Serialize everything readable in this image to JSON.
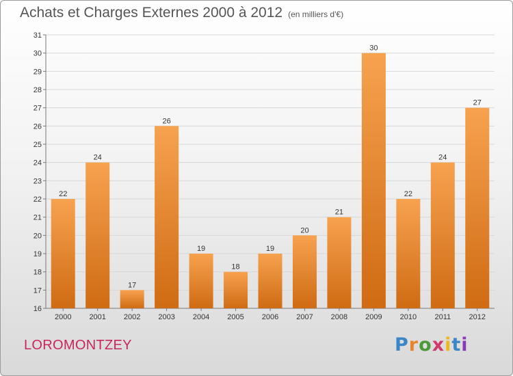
{
  "header": {
    "title": "Achats et Charges Externes 2000 à 2012",
    "subtitle": "(en milliers d'€)"
  },
  "footer": {
    "town": "LOROMONTZEY",
    "logo": "Proxiti"
  },
  "colors": {
    "bar_light": "#f7a24f",
    "bar_dark": "#cf6b13",
    "town": "#c8265a",
    "logo_letters": [
      "#3a86c8",
      "#e8842a",
      "#4a9a3a",
      "#d03a6a",
      "#f0b81a",
      "#3a86c8",
      "#8a3ab8"
    ]
  },
  "chart_data": {
    "type": "bar",
    "title": "Achats et Charges Externes 2000 à 2012",
    "subtitle": "(en milliers d'€)",
    "xlabel": "",
    "ylabel": "",
    "categories": [
      "2000",
      "2001",
      "2002",
      "2003",
      "2004",
      "2005",
      "2006",
      "2007",
      "2008",
      "2009",
      "2010",
      "2011",
      "2012"
    ],
    "values": [
      22,
      24,
      17,
      26,
      19,
      18,
      19,
      20,
      21,
      30,
      22,
      24,
      27
    ],
    "data_labels": [
      "22",
      "24",
      "17",
      "26",
      "19",
      "18",
      "19",
      "20",
      "21",
      "30",
      "22",
      "24",
      "27"
    ],
    "ylim": [
      16,
      31
    ],
    "yticks": [
      "16",
      "17",
      "18",
      "19",
      "20",
      "21",
      "22",
      "23",
      "24",
      "25",
      "26",
      "27",
      "28",
      "29",
      "30",
      "31"
    ],
    "grid": true,
    "legend": "none"
  }
}
